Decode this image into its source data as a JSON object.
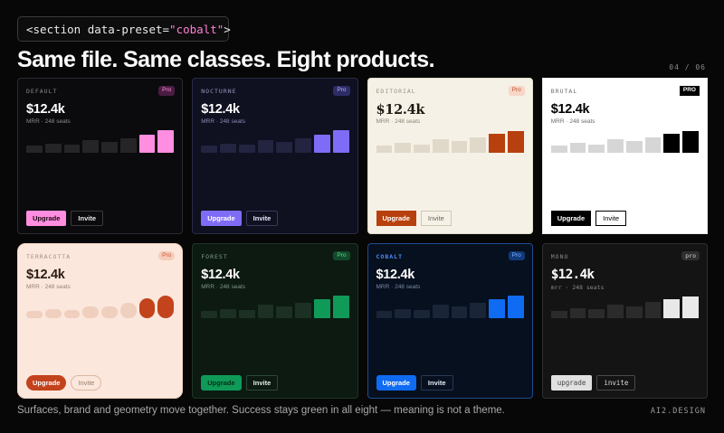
{
  "header": {
    "code_prefix": "<section data-preset=",
    "code_value": "\"cobalt\"",
    "code_suffix": ">",
    "headline": "Same file. Same classes. Eight products.",
    "pager": "04 / 06"
  },
  "footer": {
    "caption": "Surfaces, brand and geometry move together. Success stays green in all eight — meaning is not a theme.",
    "brand": "AI2.DESIGN"
  },
  "cards": [
    {
      "preset": "default",
      "name": "DEFAULT",
      "badge": "Pro",
      "value": "$12.4k",
      "meta": "MRR · 248 seats",
      "primary": "Upgrade",
      "secondary": "Invite",
      "bars": [
        0.3,
        0.38,
        0.34,
        0.55,
        0.48,
        0.62,
        0.78,
        0.95
      ]
    },
    {
      "preset": "nocturne",
      "name": "NOCTURNE",
      "badge": "Pro",
      "value": "$12.4k",
      "meta": "MRR · 248 seats",
      "primary": "Upgrade",
      "secondary": "Invite",
      "bars": [
        0.3,
        0.38,
        0.34,
        0.55,
        0.48,
        0.62,
        0.78,
        0.95
      ]
    },
    {
      "preset": "editorial",
      "name": "EDITORIAL",
      "badge": "Pro",
      "value": "$12.4k",
      "meta": "MRR · 248 seats",
      "primary": "Upgrade",
      "secondary": "Invite",
      "bars": [
        0.3,
        0.42,
        0.36,
        0.58,
        0.5,
        0.64,
        0.8,
        0.92
      ]
    },
    {
      "preset": "brutal",
      "name": "BRUTAL",
      "badge": "PRO",
      "value": "$12.4k",
      "meta": "MRR · 248 seats",
      "primary": "Upgrade",
      "secondary": "Invite",
      "bars": [
        0.3,
        0.42,
        0.36,
        0.58,
        0.5,
        0.66,
        0.8,
        0.92
      ]
    },
    {
      "preset": "terracotta",
      "name": "TERRACOTTA",
      "badge": "Pro",
      "value": "$12.4k",
      "meta": "MRR · 248 seats",
      "primary": "Upgrade",
      "secondary": "Invite",
      "bars": [
        0.3,
        0.38,
        0.34,
        0.5,
        0.48,
        0.62,
        0.82,
        0.95
      ]
    },
    {
      "preset": "forest",
      "name": "FOREST",
      "badge": "Pro",
      "value": "$12.4k",
      "meta": "MRR · 248 seats",
      "primary": "Upgrade",
      "secondary": "Invite",
      "bars": [
        0.3,
        0.38,
        0.34,
        0.55,
        0.48,
        0.62,
        0.78,
        0.95
      ]
    },
    {
      "preset": "cobalt",
      "name": "COBALT",
      "badge": "Pro",
      "value": "$12.4k",
      "meta": "MRR · 248 seats",
      "primary": "Upgrade",
      "secondary": "Invite",
      "bars": [
        0.3,
        0.38,
        0.34,
        0.55,
        0.48,
        0.62,
        0.78,
        0.95
      ]
    },
    {
      "preset": "mono",
      "name": "MONO",
      "badge": "pro",
      "value": "$12.4k",
      "meta": "mrr · 248 seats",
      "primary": "upgrade",
      "secondary": "invite",
      "bars": [
        0.3,
        0.42,
        0.36,
        0.55,
        0.5,
        0.66,
        0.8,
        0.92
      ]
    }
  ]
}
